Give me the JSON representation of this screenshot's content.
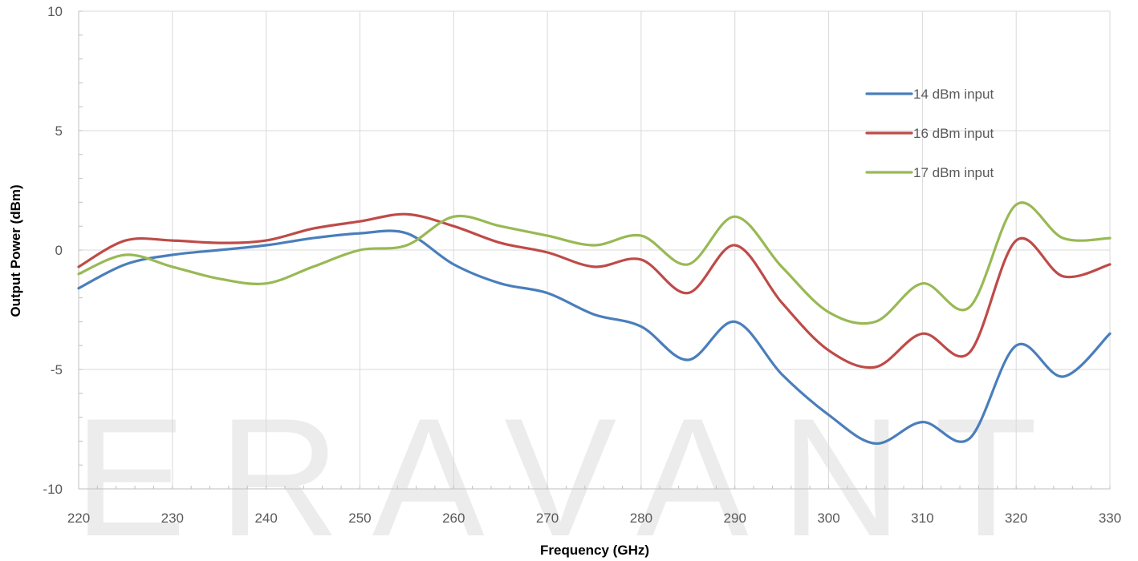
{
  "watermark": "ERAVANT",
  "chart_data": {
    "type": "line",
    "xlabel": "Frequency (GHz)",
    "ylabel": "Output Power (dBm)",
    "xlim": [
      220,
      330
    ],
    "ylim": [
      -10,
      10
    ],
    "x_ticks": [
      220,
      230,
      240,
      250,
      260,
      270,
      280,
      290,
      300,
      310,
      320,
      330
    ],
    "y_ticks": [
      -10,
      -5,
      0,
      5,
      10
    ],
    "grid": "vertical and horizontal major gridlines",
    "legend_position": "top-right",
    "x": [
      220,
      225,
      230,
      235,
      240,
      245,
      250,
      255,
      260,
      265,
      270,
      275,
      280,
      285,
      290,
      295,
      300,
      305,
      310,
      315,
      320,
      325,
      330
    ],
    "series": [
      {
        "name": "14 dBm input",
        "color": "#4a7ebb",
        "values": [
          -1.6,
          -0.6,
          -0.2,
          0.0,
          0.2,
          0.5,
          0.7,
          0.7,
          -0.6,
          -1.4,
          -1.8,
          -2.7,
          -3.2,
          -4.6,
          -3.0,
          -5.2,
          -6.9,
          -8.1,
          -7.2,
          -7.9,
          -4.0,
          -5.3,
          -3.5
        ]
      },
      {
        "name": "16 dBm input",
        "color": "#be4b48",
        "values": [
          -0.7,
          0.4,
          0.4,
          0.3,
          0.4,
          0.9,
          1.2,
          1.5,
          1.0,
          0.3,
          -0.1,
          -0.7,
          -0.4,
          -1.8,
          0.2,
          -2.2,
          -4.2,
          -4.9,
          -3.5,
          -4.3,
          0.4,
          -1.1,
          -0.6
        ]
      },
      {
        "name": "17 dBm input",
        "color": "#98b954",
        "values": [
          -1.0,
          -0.2,
          -0.7,
          -1.2,
          -1.4,
          -0.7,
          0.0,
          0.2,
          1.4,
          1.0,
          0.6,
          0.2,
          0.6,
          -0.6,
          1.4,
          -0.7,
          -2.6,
          -3.0,
          -1.4,
          -2.4,
          1.9,
          0.5,
          0.5
        ]
      }
    ]
  }
}
